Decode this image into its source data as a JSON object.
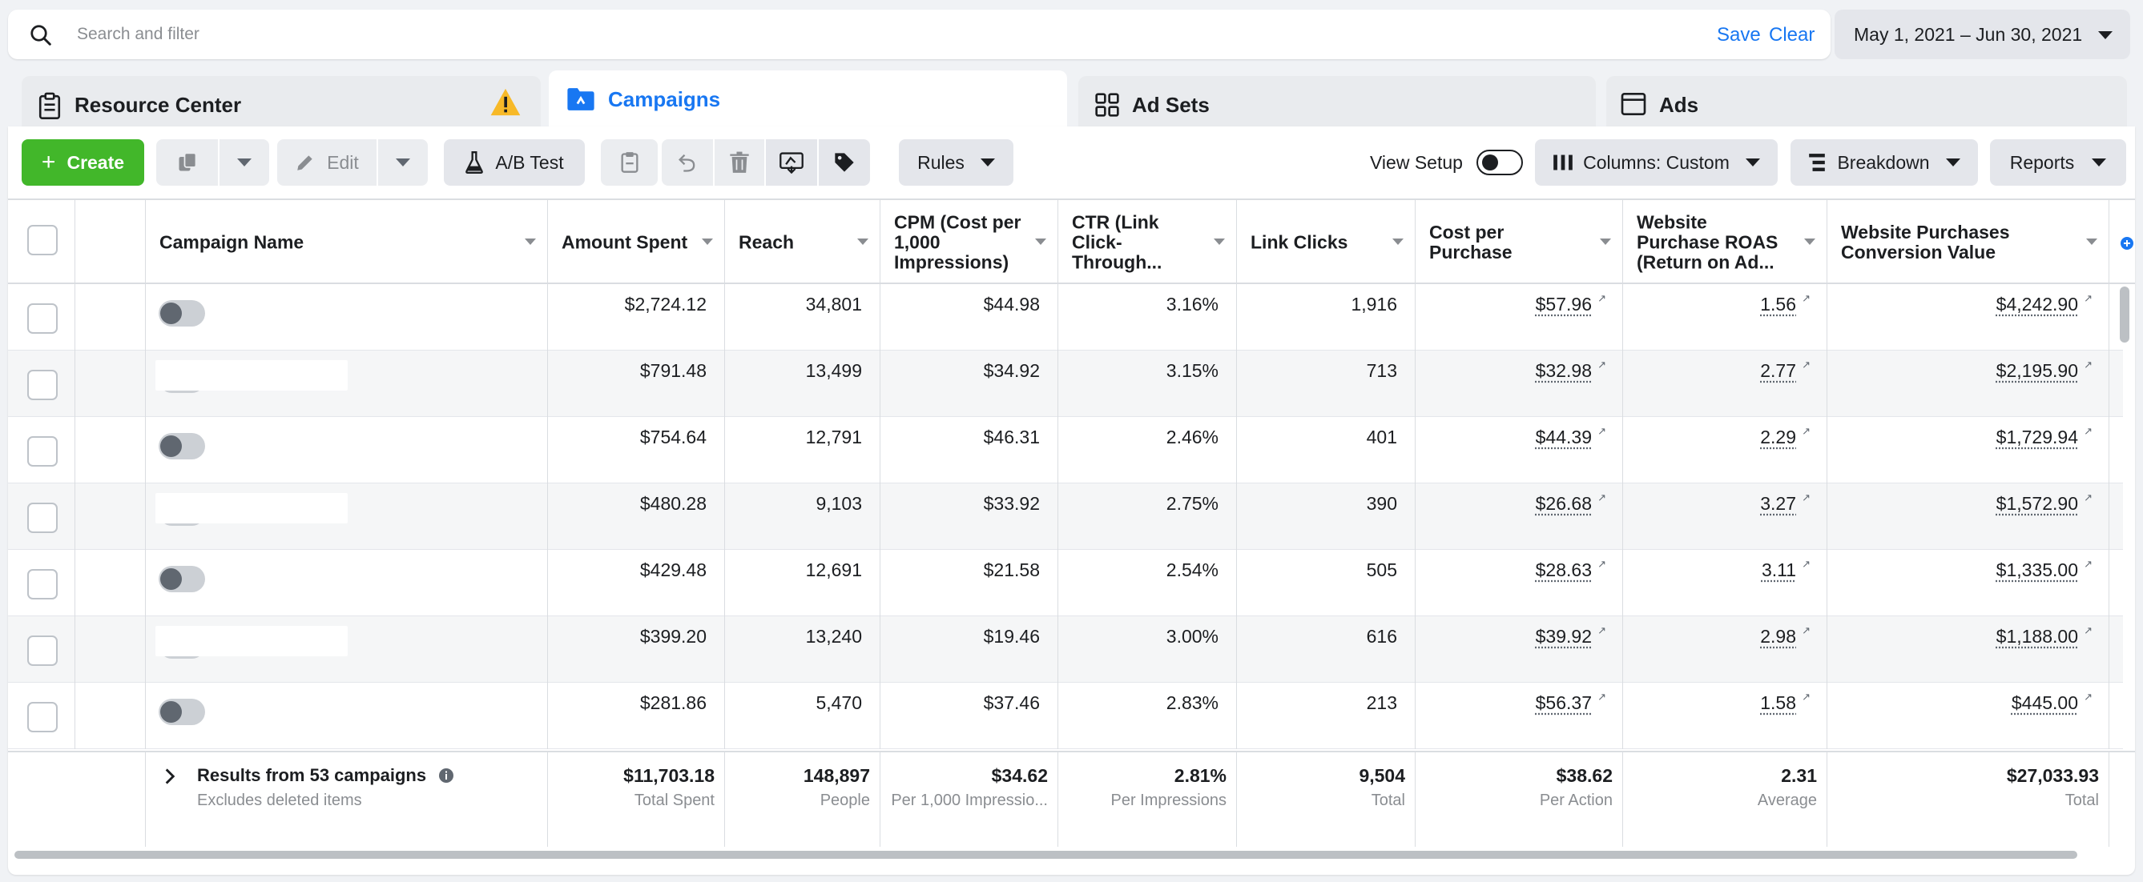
{
  "search": {
    "placeholder": "Search and filter",
    "save_label": "Save",
    "clear_label": "Clear"
  },
  "date_range": "May 1, 2021 – Jun 30, 2021",
  "tabs": [
    {
      "label": "Resource Center"
    },
    {
      "label": "Campaigns"
    },
    {
      "label": "Ad Sets"
    },
    {
      "label": "Ads"
    }
  ],
  "toolbar": {
    "create_label": "Create",
    "edit_label": "Edit",
    "ab_test_label": "A/B Test",
    "rules_label": "Rules",
    "view_setup_label": "View Setup",
    "columns_label": "Columns: Custom",
    "breakdown_label": "Breakdown",
    "reports_label": "Reports"
  },
  "columns": [
    "Campaign Name",
    "Amount Spent",
    "Reach",
    "CPM (Cost per 1,000 Impressions)",
    "CTR (Link Click-Through...",
    "Link Clicks",
    "Cost per Purchase",
    "Website Purchase ROAS (Return on Ad...",
    "Website Purchases Conversion Value"
  ],
  "rows": [
    {
      "spent": "$2,724.12",
      "reach": "34,801",
      "cpm": "$44.98",
      "ctr": "3.16%",
      "clicks": "1,916",
      "cpp": "$57.96",
      "roas": "1.56",
      "value": "$4,242.90"
    },
    {
      "spent": "$791.48",
      "reach": "13,499",
      "cpm": "$34.92",
      "ctr": "3.15%",
      "clicks": "713",
      "cpp": "$32.98",
      "roas": "2.77",
      "value": "$2,195.90"
    },
    {
      "spent": "$754.64",
      "reach": "12,791",
      "cpm": "$46.31",
      "ctr": "2.46%",
      "clicks": "401",
      "cpp": "$44.39",
      "roas": "2.29",
      "value": "$1,729.94"
    },
    {
      "spent": "$480.28",
      "reach": "9,103",
      "cpm": "$33.92",
      "ctr": "2.75%",
      "clicks": "390",
      "cpp": "$26.68",
      "roas": "3.27",
      "value": "$1,572.90"
    },
    {
      "spent": "$429.48",
      "reach": "12,691",
      "cpm": "$21.58",
      "ctr": "2.54%",
      "clicks": "505",
      "cpp": "$28.63",
      "roas": "3.11",
      "value": "$1,335.00"
    },
    {
      "spent": "$399.20",
      "reach": "13,240",
      "cpm": "$19.46",
      "ctr": "3.00%",
      "clicks": "616",
      "cpp": "$39.92",
      "roas": "2.98",
      "value": "$1,188.00"
    },
    {
      "spent": "$281.86",
      "reach": "5,470",
      "cpm": "$37.46",
      "ctr": "2.83%",
      "clicks": "213",
      "cpp": "$56.37",
      "roas": "1.58",
      "value": "$445.00"
    }
  ],
  "footer": {
    "results_label": "Results from 53 campaigns",
    "results_sub": "Excludes deleted items",
    "spent": "$11,703.18",
    "spent_sub": "Total Spent",
    "reach": "148,897",
    "reach_sub": "People",
    "cpm": "$34.62",
    "cpm_sub": "Per 1,000 Impressio...",
    "ctr": "2.81%",
    "ctr_sub": "Per Impressions",
    "clicks": "9,504",
    "clicks_sub": "Total",
    "cpp": "$38.62",
    "cpp_sub": "Per Action",
    "roas": "2.31",
    "roas_sub": "Average",
    "value": "$27,033.93",
    "value_sub": "Total"
  },
  "colors": {
    "accent": "#1877f2",
    "create": "#42b72a",
    "warning": "#f7b928"
  }
}
